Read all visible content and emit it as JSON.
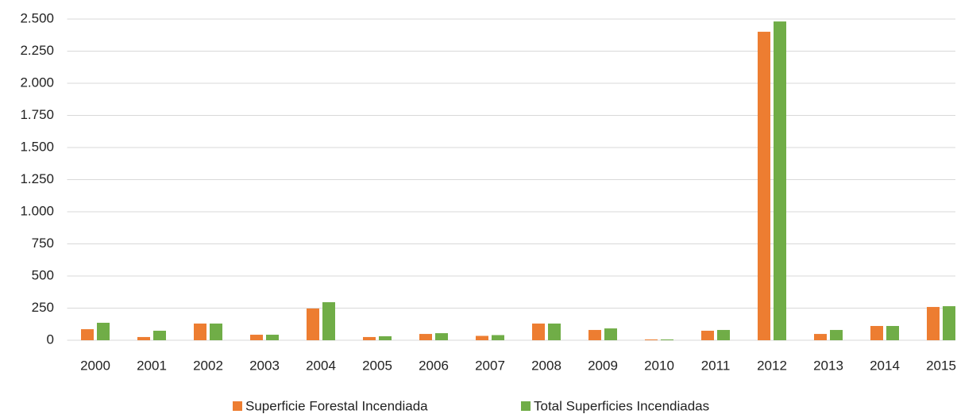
{
  "chart_data": {
    "type": "bar",
    "categories": [
      "2000",
      "2001",
      "2002",
      "2003",
      "2004",
      "2005",
      "2006",
      "2007",
      "2008",
      "2009",
      "2010",
      "2011",
      "2012",
      "2013",
      "2014",
      "2015"
    ],
    "series": [
      {
        "name": "Superficie Forestal Incendiada",
        "color": "#ed7d31",
        "values": [
          86,
          25,
          130,
          43,
          247,
          25,
          49,
          34,
          130,
          80,
          6,
          74,
          2401,
          49,
          111,
          259
        ]
      },
      {
        "name": "Total Superficies Incendiadas",
        "color": "#70ad47",
        "values": [
          136,
          74,
          130,
          43,
          296,
          31,
          55,
          40,
          130,
          92,
          6,
          80,
          2481,
          80,
          111,
          265
        ]
      }
    ],
    "ylim": [
      0,
      2500
    ],
    "yticks": [
      0,
      250,
      500,
      750,
      {
        "value": 1000,
        "label": "1.000"
      },
      {
        "value": 1250,
        "label": "1.250"
      },
      {
        "value": 1500,
        "label": "1.500"
      },
      {
        "value": 1750,
        "label": "1.750"
      },
      {
        "value": 2000,
        "label": "2.000"
      },
      {
        "value": 2250,
        "label": "2.250"
      },
      {
        "value": 2500,
        "label": "2.500"
      }
    ],
    "grid": true,
    "legend": "bottom"
  }
}
